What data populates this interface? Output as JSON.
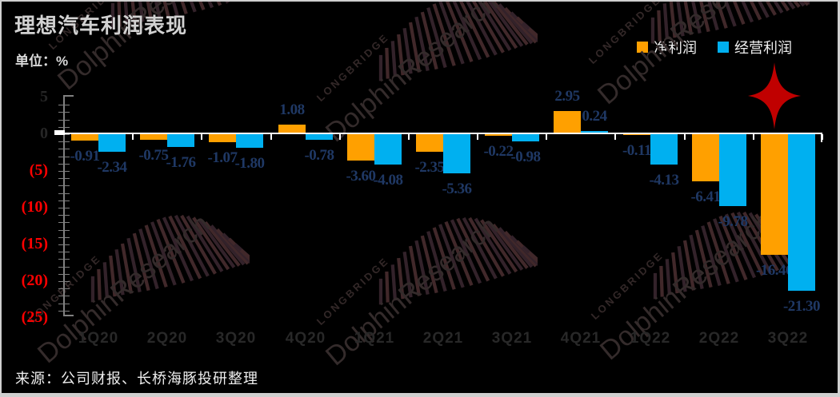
{
  "header": {
    "title": "理想汽车利润表现",
    "unit_label": "单位：%"
  },
  "legend": {
    "items": [
      {
        "label": "净利润",
        "color": "#FFA000"
      },
      {
        "label": "经营利润",
        "color": "#00B0F0"
      }
    ]
  },
  "watermark": {
    "brand": "LONGBRIDGE",
    "name": "DolphinResearch"
  },
  "logo": {
    "shape": "four-point-star",
    "color": "#C00000"
  },
  "source": "来源：公司财报、长桥海豚投研整理",
  "chart_data": {
    "type": "bar",
    "title": "理想汽车利润表现",
    "unit": "%",
    "categories": [
      "1Q20",
      "2Q20",
      "3Q20",
      "4Q20",
      "1Q21",
      "2Q21",
      "3Q21",
      "4Q21",
      "1Q22",
      "2Q22",
      "3Q22"
    ],
    "series": [
      {
        "name": "净利润",
        "color": "#FFA000",
        "values": [
          -0.91,
          -0.75,
          -1.07,
          1.08,
          -3.6,
          -2.35,
          -0.22,
          2.95,
          -0.11,
          -6.41,
          -16.46
        ],
        "labels": [
          "-0.91",
          "-0.75",
          "-1.07",
          "1.08",
          "-3.60",
          "-2.35",
          "-0.22",
          "2.95",
          "-0.11",
          "-6.41",
          "-16.46"
        ]
      },
      {
        "name": "经营利润",
        "color": "#00B0F0",
        "values": [
          -2.34,
          -1.76,
          -1.8,
          -0.78,
          -4.08,
          -5.36,
          -0.98,
          0.24,
          -4.13,
          -9.78,
          -21.3
        ],
        "labels": [
          "-2.34",
          "-1.76",
          "-1.80",
          "-0.78",
          "-4.08",
          "-5.36",
          "-0.98",
          "0.24",
          "-4.13",
          "-9.78",
          "-21.30"
        ]
      }
    ],
    "ylim": [
      -25,
      5
    ],
    "ytick_interval": 5,
    "yticks": [
      {
        "value": 5,
        "label": "5"
      },
      {
        "value": 0,
        "label": "0"
      },
      {
        "value": -5,
        "label": "(5)"
      },
      {
        "value": -10,
        "label": "(10)"
      },
      {
        "value": -15,
        "label": "(15)"
      },
      {
        "value": -20,
        "label": "(20)"
      },
      {
        "value": -25,
        "label": "(25)"
      }
    ],
    "grid": false,
    "legend_position": "top-right",
    "bar_label_color": "#1F3864",
    "ytick_positive_color": "#262626",
    "ytick_negative_color": "#FF0000",
    "axis_color": "#808080",
    "zero_line_color": "#FFFFFF"
  }
}
